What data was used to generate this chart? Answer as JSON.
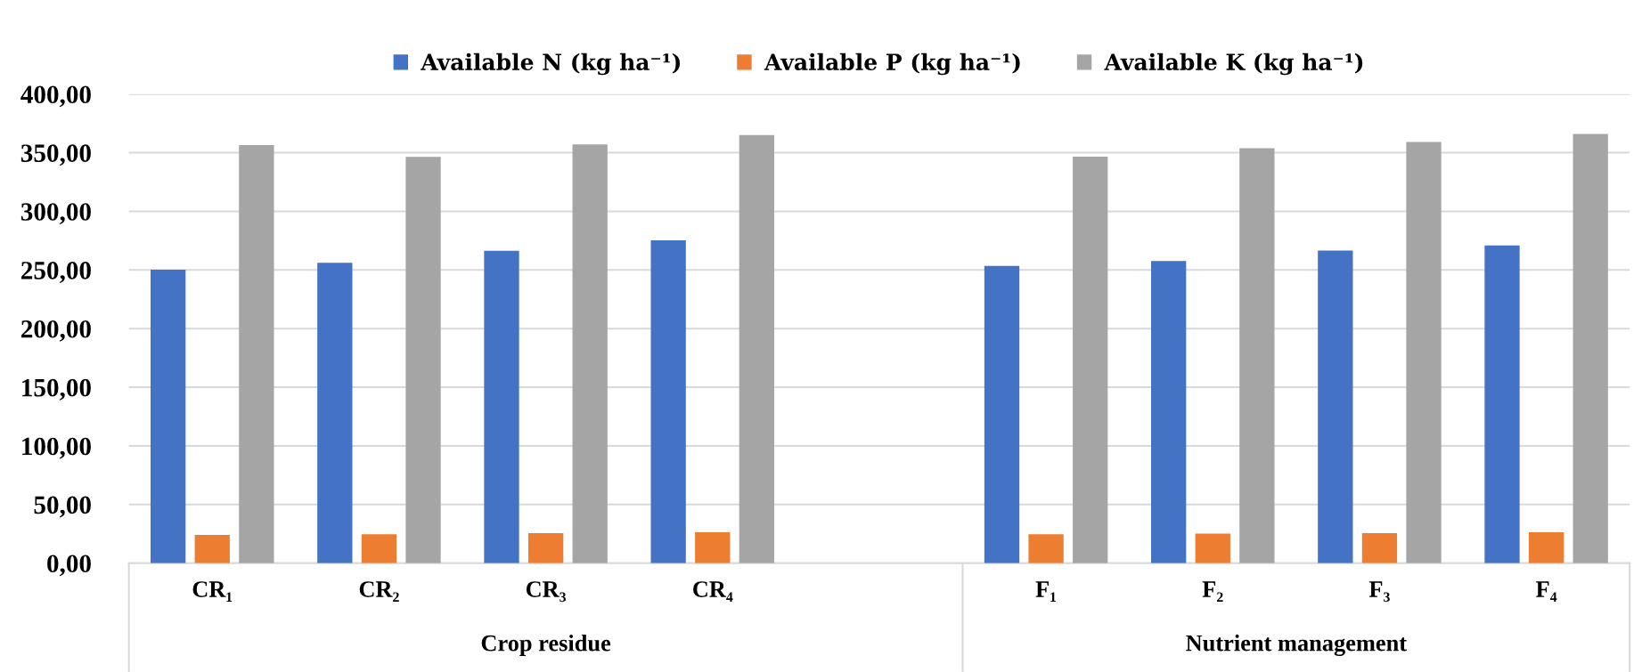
{
  "chart_data": {
    "type": "bar",
    "categories": [
      "CR₁",
      "CR₂",
      "CR₃",
      "CR₄",
      null,
      "F₁",
      "F₂",
      "F₃",
      "F₄"
    ],
    "series": [
      {
        "name": "Available N (kg ha⁻¹)",
        "color": "#4472c4",
        "values": [
          250.3,
          256.1,
          266.4,
          275.3,
          null,
          253.5,
          257.6,
          266.5,
          271.0
        ]
      },
      {
        "name": "Available P (kg ha⁻¹)",
        "color": "#ed7d31",
        "values": [
          24.1,
          24.6,
          25.5,
          26.4,
          null,
          24.6,
          25.1,
          25.5,
          26.4
        ]
      },
      {
        "name": "Available K (kg ha⁻¹)",
        "color": "#a5a5a5",
        "values": [
          356.6,
          346.4,
          357.1,
          365.1,
          null,
          346.7,
          353.9,
          359.2,
          366.0
        ]
      }
    ],
    "ylim": [
      0,
      400
    ],
    "yticks": [
      {
        "value": 0,
        "label": "0,00"
      },
      {
        "value": 50,
        "label": "50,00"
      },
      {
        "value": 100,
        "label": "100,00"
      },
      {
        "value": 150,
        "label": "150,00"
      },
      {
        "value": 200,
        "label": "200,00"
      },
      {
        "value": 250,
        "label": "250,00"
      },
      {
        "value": 300,
        "label": "300,00"
      },
      {
        "value": 350,
        "label": "350,00"
      },
      {
        "value": 400,
        "label": "400,00"
      }
    ],
    "annotations": [
      "Crop residue",
      "Nutrient management"
    ],
    "grid": "y",
    "legend": "top"
  }
}
